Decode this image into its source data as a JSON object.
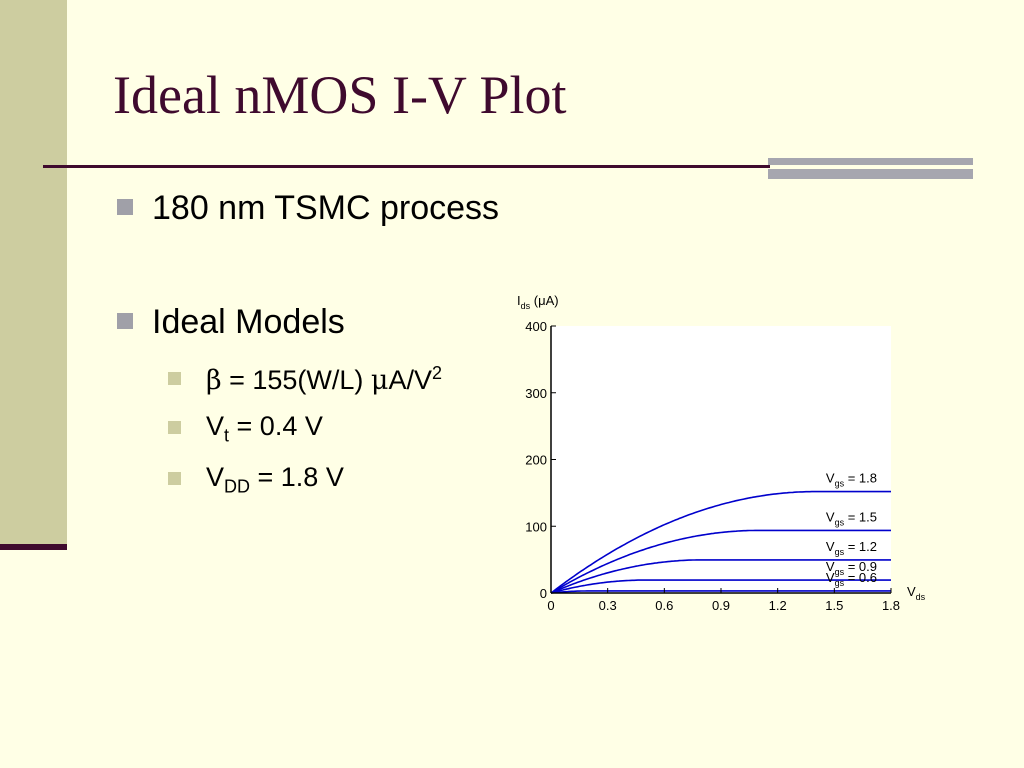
{
  "slide": {
    "title": "Ideal nMOS I-V Plot",
    "bullets": [
      {
        "text": "180 nm TSMC process"
      },
      {
        "text": "Ideal Models"
      }
    ],
    "sub_bullets": {
      "beta": {
        "symbol": "β",
        "rest": " = 155(W/L) ",
        "mu": "μ",
        "unit": "A/V",
        "sup": "2"
      },
      "vt": {
        "base": "V",
        "sub": "t",
        "rest": " = 0.4 V"
      },
      "vdd": {
        "base": "V",
        "sub": "DD",
        "rest": " = 1.8 V"
      }
    }
  },
  "colors": {
    "title": "#3F0A2E",
    "background": "#FFFFE6",
    "sidebar": "#CDCDA0",
    "curve": "#0000CC"
  },
  "chart_data": {
    "type": "line",
    "ylabel": {
      "base": "I",
      "sub": "ds",
      "rest": " (μA)"
    },
    "xlabel": {
      "base": "V",
      "sub": "ds"
    },
    "x_ticks": [
      "0",
      "0.3",
      "0.6",
      "0.9",
      "1.2",
      "1.5",
      "1.8"
    ],
    "y_ticks": [
      "0",
      "100",
      "200",
      "300",
      "400"
    ],
    "xlim": [
      0,
      1.8
    ],
    "ylim": [
      0,
      400
    ],
    "grid": false,
    "vt": 0.4,
    "beta": 155,
    "series": [
      {
        "vgs": 0.6,
        "label": {
          "base": "V",
          "sub": "gs",
          "rest": " = 0.6"
        }
      },
      {
        "vgs": 0.9,
        "label": {
          "base": "V",
          "sub": "gs",
          "rest": " = 0.9"
        }
      },
      {
        "vgs": 1.2,
        "label": {
          "base": "V",
          "sub": "gs",
          "rest": " = 1.2"
        }
      },
      {
        "vgs": 1.5,
        "label": {
          "base": "V",
          "sub": "gs",
          "rest": " = 1.5"
        }
      },
      {
        "vgs": 1.8,
        "label": {
          "base": "V",
          "sub": "gs",
          "rest": " = 1.8"
        }
      }
    ]
  }
}
